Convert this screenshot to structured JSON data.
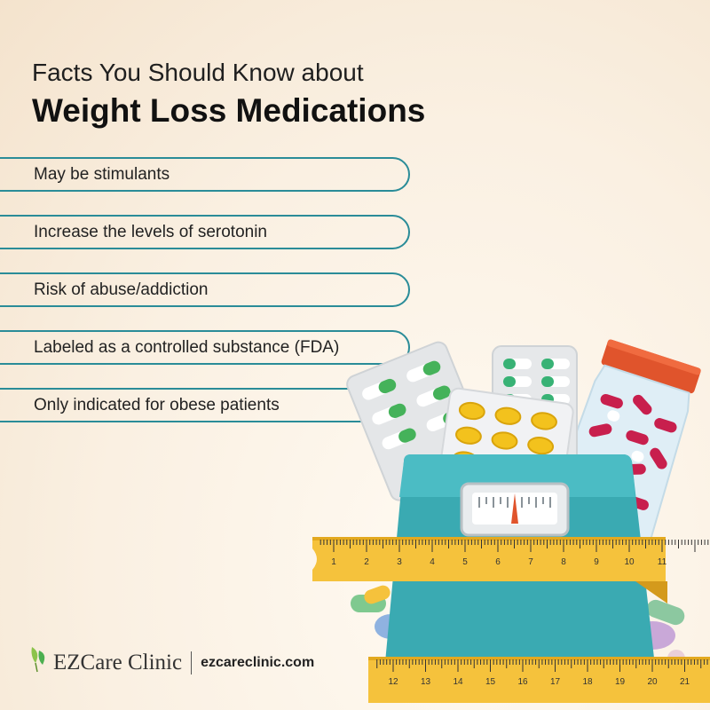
{
  "header": {
    "subtitle": "Facts You Should Know about",
    "title": "Weight Loss Medications"
  },
  "facts": [
    {
      "text": "May be stimulants"
    },
    {
      "text": "Increase the levels of serotonin"
    },
    {
      "text": "Risk of abuse/addiction"
    },
    {
      "text": "Labeled as a controlled substance (FDA)"
    },
    {
      "text": "Only indicated for obese patients"
    }
  ],
  "footer": {
    "brand": "EZCare Clinic",
    "url": "ezcareclinic.com"
  },
  "illustration": {
    "ruler_top_numbers": [
      "1",
      "2",
      "3",
      "4",
      "5",
      "6",
      "7",
      "8",
      "9",
      "10",
      "11"
    ],
    "ruler_bottom_numbers": [
      "12",
      "13",
      "14",
      "15",
      "16",
      "17",
      "18",
      "19",
      "20",
      "21"
    ]
  },
  "colors": {
    "accent": "#2a8c98",
    "scale": "#3aaab2",
    "ruler": "#f5c23c",
    "cap": "#e0542c"
  }
}
